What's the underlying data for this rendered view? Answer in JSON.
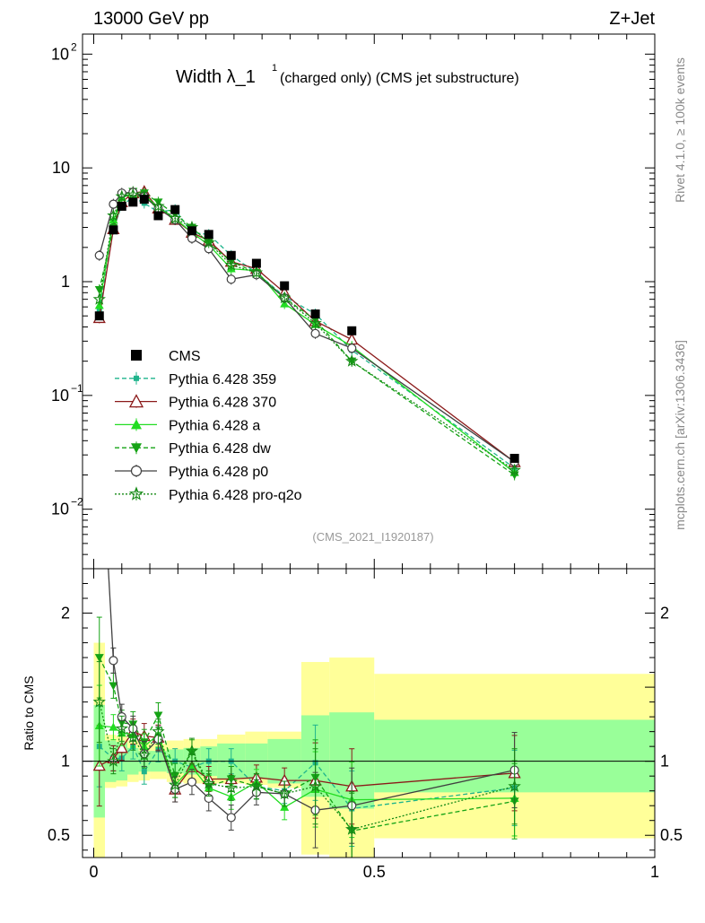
{
  "header": {
    "left": "13000 GeV pp",
    "right": "Z+Jet"
  },
  "plot_title": {
    "main": "Width λ_1",
    "sup": "1",
    "detail": "(charged only) (CMS jet substructure)"
  },
  "watermark": "(CMS_2021_I1920187)",
  "side_labels": {
    "rivet": "Rivet 4.1.0, ≥ 100k events",
    "mcplots": "mcplots.cern.ch [arXiv:1306.3436]"
  },
  "ratio_ylabel": "Ratio to CMS",
  "upper_ticks": [
    {
      "value": 100,
      "base": "10",
      "exp": "2"
    },
    {
      "value": 10,
      "base": "10",
      "exp": ""
    },
    {
      "value": 1,
      "base": "1",
      "exp": ""
    },
    {
      "value": 0.1,
      "base": "10",
      "exp": "−1"
    },
    {
      "value": 0.01,
      "base": "10",
      "exp": "−2"
    }
  ],
  "ratio_ticks": [
    {
      "value": 2,
      "label": "2"
    },
    {
      "value": 1,
      "label": "1"
    },
    {
      "value": 0.5,
      "label": "0.5"
    }
  ],
  "x_ticks": [
    {
      "value": 0,
      "label": "0"
    },
    {
      "value": 0.5,
      "label": "0.5"
    },
    {
      "value": 1,
      "label": "1"
    }
  ],
  "legend": [
    {
      "label": "CMS",
      "color": "#000000",
      "marker": "square-filled",
      "dash": ""
    },
    {
      "label": "Pythia 6.428 359",
      "color": "#1fb48c",
      "marker": "square-small",
      "dash": "5,3"
    },
    {
      "label": "Pythia 6.428 370",
      "color": "#8b1a1a",
      "marker": "triangle-open",
      "dash": ""
    },
    {
      "label": "Pythia 6.428 a",
      "color": "#22dd22",
      "marker": "triangle-filled",
      "dash": ""
    },
    {
      "label": "Pythia 6.428 dw",
      "color": "#15a315",
      "marker": "triangle-down-filled",
      "dash": "5,3"
    },
    {
      "label": "Pythia 6.428 p0",
      "color": "#404040",
      "marker": "circle-open",
      "dash": ""
    },
    {
      "label": "Pythia 6.428 pro-q2o",
      "color": "#158a15",
      "marker": "star-open",
      "dash": "2,2"
    }
  ],
  "chart_data": {
    "type": "line",
    "title": "Width λ_1^1 (charged only) (CMS jet substructure)",
    "xlabel": "",
    "ylabel": "",
    "xlim": [
      -0.02,
      1.0
    ],
    "ylim": [
      0.003,
      150
    ],
    "yscale": "log",
    "ratio_ylim": [
      0.35,
      2.3
    ],
    "x": [
      0.01,
      0.035,
      0.05,
      0.07,
      0.09,
      0.115,
      0.145,
      0.175,
      0.205,
      0.245,
      0.29,
      0.34,
      0.395,
      0.46,
      0.75
    ],
    "bin_edges": [
      0,
      0.02,
      0.04,
      0.06,
      0.08,
      0.1,
      0.13,
      0.16,
      0.19,
      0.22,
      0.27,
      0.31,
      0.37,
      0.42,
      0.5,
      1.0
    ],
    "cms": {
      "values": [
        0.5,
        2.85,
        4.6,
        5.0,
        5.3,
        3.8,
        4.3,
        2.8,
        2.6,
        1.7,
        1.45,
        0.92,
        0.52,
        0.37,
        0.028
      ],
      "band_inner": [
        [
          0.62,
          1.38
        ],
        [
          0.86,
          1.14
        ],
        [
          0.87,
          1.13
        ],
        [
          0.91,
          1.09
        ],
        [
          0.93,
          1.07
        ],
        [
          0.93,
          1.07
        ],
        [
          0.92,
          1.08
        ],
        [
          0.91,
          1.09
        ],
        [
          0.9,
          1.1
        ],
        [
          0.88,
          1.12
        ],
        [
          0.88,
          1.12
        ],
        [
          0.85,
          1.15
        ],
        [
          0.76,
          1.31
        ],
        [
          0.68,
          1.33
        ],
        [
          0.79,
          1.28
        ]
      ],
      "band_outer": [
        [
          0.3,
          1.8
        ],
        [
          0.82,
          1.18
        ],
        [
          0.83,
          1.17
        ],
        [
          0.86,
          1.14
        ],
        [
          0.87,
          1.13
        ],
        [
          0.88,
          1.12
        ],
        [
          0.86,
          1.14
        ],
        [
          0.85,
          1.15
        ],
        [
          0.85,
          1.15
        ],
        [
          0.85,
          1.18
        ],
        [
          0.84,
          1.2
        ],
        [
          0.82,
          1.2
        ],
        [
          0.37,
          1.67
        ],
        [
          0.35,
          1.7
        ],
        [
          0.48,
          1.59
        ]
      ]
    },
    "series": [
      {
        "name": "Pythia 6.428 359",
        "values": [
          0.55,
          2.9,
          4.7,
          5.5,
          4.9,
          4.1,
          4.3,
          2.7,
          2.6,
          1.7,
          1.2,
          0.74,
          0.52,
          0.25,
          0.023
        ],
        "ratio": [
          1.1,
          1.02,
          1.02,
          1.1,
          0.93,
          1.08,
          1.0,
          0.96,
          1.0,
          1.0,
          0.83,
          0.8,
          0.99,
          0.68,
          0.82
        ]
      },
      {
        "name": "Pythia 6.428 370",
        "values": [
          0.48,
          2.9,
          5.0,
          6.0,
          6.2,
          4.4,
          3.5,
          2.7,
          2.3,
          1.5,
          1.3,
          0.8,
          0.45,
          0.31,
          0.026
        ],
        "ratio": [
          0.97,
          1.02,
          1.09,
          1.2,
          1.17,
          1.16,
          0.81,
          0.96,
          0.88,
          0.88,
          0.89,
          0.87,
          0.87,
          0.83,
          0.92
        ]
      },
      {
        "name": "Pythia 6.428 a",
        "values": [
          0.62,
          3.5,
          5.5,
          5.9,
          5.8,
          4.5,
          3.6,
          2.7,
          2.1,
          1.3,
          1.25,
          0.64,
          0.42,
          0.27,
          0.021
        ],
        "ratio": [
          1.24,
          1.23,
          1.19,
          1.18,
          1.1,
          1.18,
          0.84,
          0.96,
          0.82,
          0.76,
          0.86,
          0.69,
          0.81,
          0.74,
          0.75
        ]
      },
      {
        "name": "Pythia 6.428 dw",
        "values": [
          0.85,
          3.0,
          5.8,
          6.2,
          6.0,
          5.0,
          3.9,
          3.0,
          2.2,
          1.5,
          1.2,
          0.72,
          0.46,
          0.2,
          0.02
        ],
        "ratio": [
          1.7,
          1.51,
          1.26,
          1.25,
          1.13,
          1.31,
          0.9,
          1.06,
          0.83,
          0.88,
          0.83,
          0.78,
          0.89,
          0.53,
          0.73
        ]
      },
      {
        "name": "Pythia 6.428 p0",
        "values": [
          1.7,
          4.8,
          6.0,
          6.1,
          5.6,
          4.4,
          3.5,
          2.4,
          1.95,
          1.05,
          1.15,
          0.72,
          0.35,
          0.26,
          0.026
        ],
        "ratio": [
          3.4,
          1.68,
          1.3,
          1.22,
          1.05,
          1.15,
          0.81,
          0.86,
          0.75,
          0.62,
          0.79,
          0.78,
          0.67,
          0.7,
          0.94
        ]
      },
      {
        "name": "Pythia 6.428 pro-q2o",
        "values": [
          0.7,
          3.8,
          5.6,
          5.8,
          5.5,
          4.6,
          3.6,
          3.0,
          2.2,
          1.4,
          1.2,
          0.72,
          0.43,
          0.2,
          0.022
        ],
        "ratio": [
          1.4,
          1.0,
          1.22,
          1.16,
          1.04,
          1.2,
          0.84,
          1.07,
          0.85,
          0.82,
          0.83,
          0.78,
          0.83,
          0.54,
          0.83
        ]
      }
    ]
  }
}
